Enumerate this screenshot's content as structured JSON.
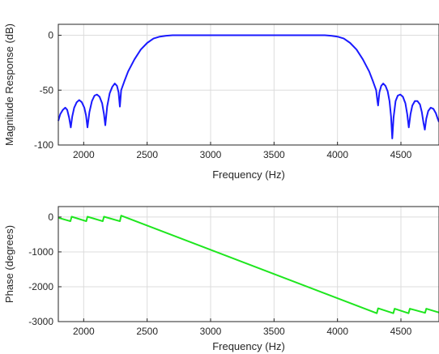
{
  "chart_data": [
    {
      "type": "line",
      "xlabel": "Frequency (Hz)",
      "ylabel": "Magnitude Response (dB)",
      "xlim": [
        1800,
        4800
      ],
      "ylim": [
        -100,
        10
      ],
      "xticks": [
        2000,
        2500,
        3000,
        3500,
        4000,
        4500
      ],
      "yticks": [
        0,
        -50,
        -100
      ],
      "grid": true,
      "series": [
        {
          "color": "#1a1aff",
          "points": [
            [
              1800,
              -78
            ],
            [
              1815,
              -72
            ],
            [
              1835,
              -68
            ],
            [
              1855,
              -66
            ],
            [
              1870,
              -68
            ],
            [
              1885,
              -75
            ],
            [
              1898,
              -84
            ],
            [
              1910,
              -74
            ],
            [
              1925,
              -66
            ],
            [
              1945,
              -61
            ],
            [
              1965,
              -59
            ],
            [
              1985,
              -61
            ],
            [
              2005,
              -66
            ],
            [
              2018,
              -73
            ],
            [
              2030,
              -84
            ],
            [
              2045,
              -70
            ],
            [
              2065,
              -60
            ],
            [
              2085,
              -55
            ],
            [
              2105,
              -54
            ],
            [
              2125,
              -56
            ],
            [
              2145,
              -62
            ],
            [
              2160,
              -72
            ],
            [
              2170,
              -82
            ],
            [
              2185,
              -65
            ],
            [
              2205,
              -53
            ],
            [
              2225,
              -47
            ],
            [
              2245,
              -44
            ],
            [
              2262,
              -46
            ],
            [
              2275,
              -52
            ],
            [
              2285,
              -65
            ],
            [
              2295,
              -50
            ],
            [
              2320,
              -42
            ],
            [
              2350,
              -33
            ],
            [
              2400,
              -22
            ],
            [
              2450,
              -13
            ],
            [
              2500,
              -7
            ],
            [
              2550,
              -3
            ],
            [
              2600,
              -1.2
            ],
            [
              2650,
              -0.4
            ],
            [
              2700,
              0
            ],
            [
              3900,
              0
            ],
            [
              3950,
              -0.4
            ],
            [
              4000,
              -1.2
            ],
            [
              4050,
              -3
            ],
            [
              4100,
              -7
            ],
            [
              4150,
              -13
            ],
            [
              4200,
              -22
            ],
            [
              4250,
              -33
            ],
            [
              4280,
              -42
            ],
            [
              4305,
              -50
            ],
            [
              4315,
              -60
            ],
            [
              4320,
              -64
            ],
            [
              4330,
              -52
            ],
            [
              4345,
              -46
            ],
            [
              4360,
              -44
            ],
            [
              4378,
              -46
            ],
            [
              4395,
              -51
            ],
            [
              4410,
              -60
            ],
            [
              4422,
              -74
            ],
            [
              4432,
              -94
            ],
            [
              4442,
              -75
            ],
            [
              4458,
              -60
            ],
            [
              4475,
              -55
            ],
            [
              4495,
              -54
            ],
            [
              4515,
              -56
            ],
            [
              4535,
              -62
            ],
            [
              4550,
              -72
            ],
            [
              4562,
              -84
            ],
            [
              4575,
              -72
            ],
            [
              4590,
              -64
            ],
            [
              4610,
              -60
            ],
            [
              4630,
              -60
            ],
            [
              4650,
              -63
            ],
            [
              4665,
              -70
            ],
            [
              4678,
              -80
            ],
            [
              4688,
              -86
            ],
            [
              4700,
              -76
            ],
            [
              4715,
              -69
            ],
            [
              4735,
              -66
            ],
            [
              4755,
              -67
            ],
            [
              4775,
              -71
            ],
            [
              4790,
              -76
            ],
            [
              4800,
              -79
            ]
          ]
        }
      ]
    },
    {
      "type": "line",
      "xlabel": "Frequency (Hz)",
      "ylabel": "Phase (degrees)",
      "xlim": [
        1800,
        4800
      ],
      "ylim": [
        -3000,
        300
      ],
      "xticks": [
        2000,
        2500,
        3000,
        3500,
        4000,
        4500
      ],
      "yticks": [
        0,
        -1000,
        -2000,
        -3000
      ],
      "grid": true,
      "series": [
        {
          "color": "#1ee61e",
          "points": [
            [
              1800,
              -20
            ],
            [
              1895,
              -120
            ],
            [
              1905,
              10
            ],
            [
              2020,
              -120
            ],
            [
              2030,
              10
            ],
            [
              2150,
              -120
            ],
            [
              2160,
              10
            ],
            [
              2285,
              -120
            ],
            [
              2295,
              40
            ],
            [
              4310,
              -2760
            ],
            [
              4320,
              -2620
            ],
            [
              4440,
              -2760
            ],
            [
              4450,
              -2630
            ],
            [
              4560,
              -2760
            ],
            [
              4570,
              -2630
            ],
            [
              4690,
              -2750
            ],
            [
              4700,
              -2630
            ],
            [
              4800,
              -2740
            ]
          ]
        }
      ]
    }
  ]
}
